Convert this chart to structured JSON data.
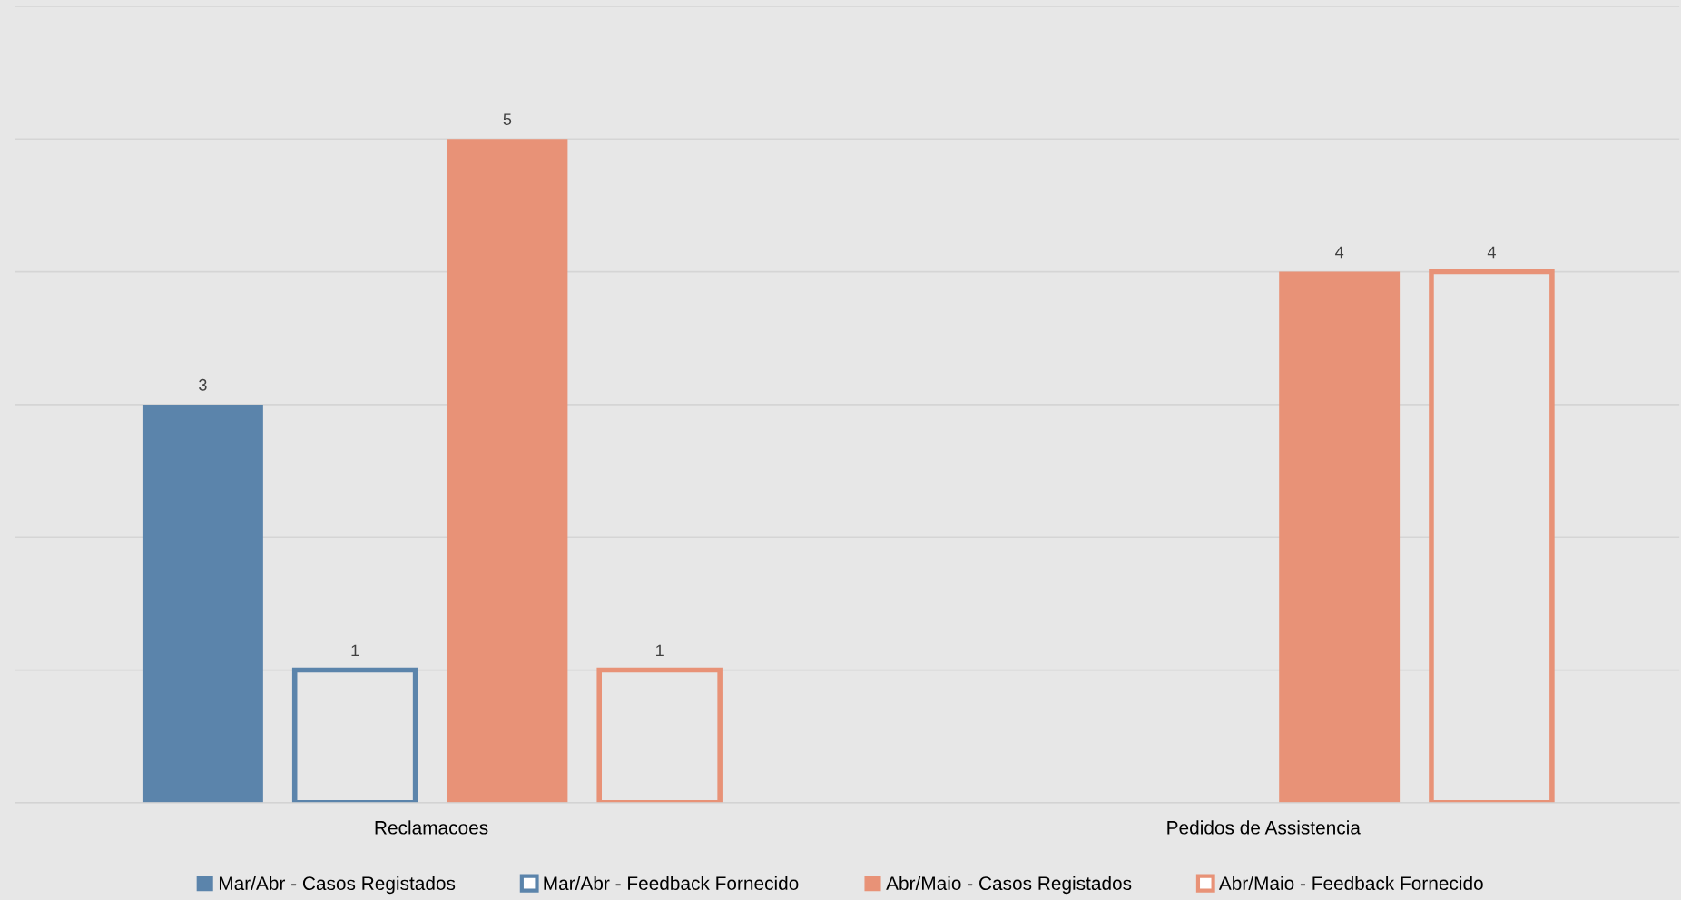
{
  "chart_data": {
    "type": "bar",
    "categories": [
      "Reclamacoes",
      "Pedidos de Assistencia"
    ],
    "series": [
      {
        "name": "Mar/Abr - Casos Registados",
        "color": "#5b84ab",
        "values": [
          3,
          null
        ]
      },
      {
        "name": "Mar/Abr - Feedback Fornecido",
        "color": "#5b84ab",
        "values": [
          1,
          null
        ]
      },
      {
        "name": "Abr/Maio - Casos Registados",
        "color": "#e89277",
        "values": [
          5,
          4
        ]
      },
      {
        "name": "Abr/Maio - Feedback Fornecido",
        "color": "#e89277",
        "values": [
          1,
          4
        ]
      }
    ],
    "ylim": [
      0,
      6
    ],
    "yticks": [
      {
        "value": 0,
        "label": null
      },
      {
        "value": 1,
        "label": null
      },
      {
        "value": 2,
        "label": null
      },
      {
        "value": 3,
        "label": null
      },
      {
        "value": 4,
        "label": null
      },
      {
        "value": 5,
        "label": null
      },
      {
        "value": 6,
        "label": null
      }
    ],
    "grid": "y",
    "legend": "bottom",
    "data_labels": true,
    "tick_labels": "x"
  }
}
